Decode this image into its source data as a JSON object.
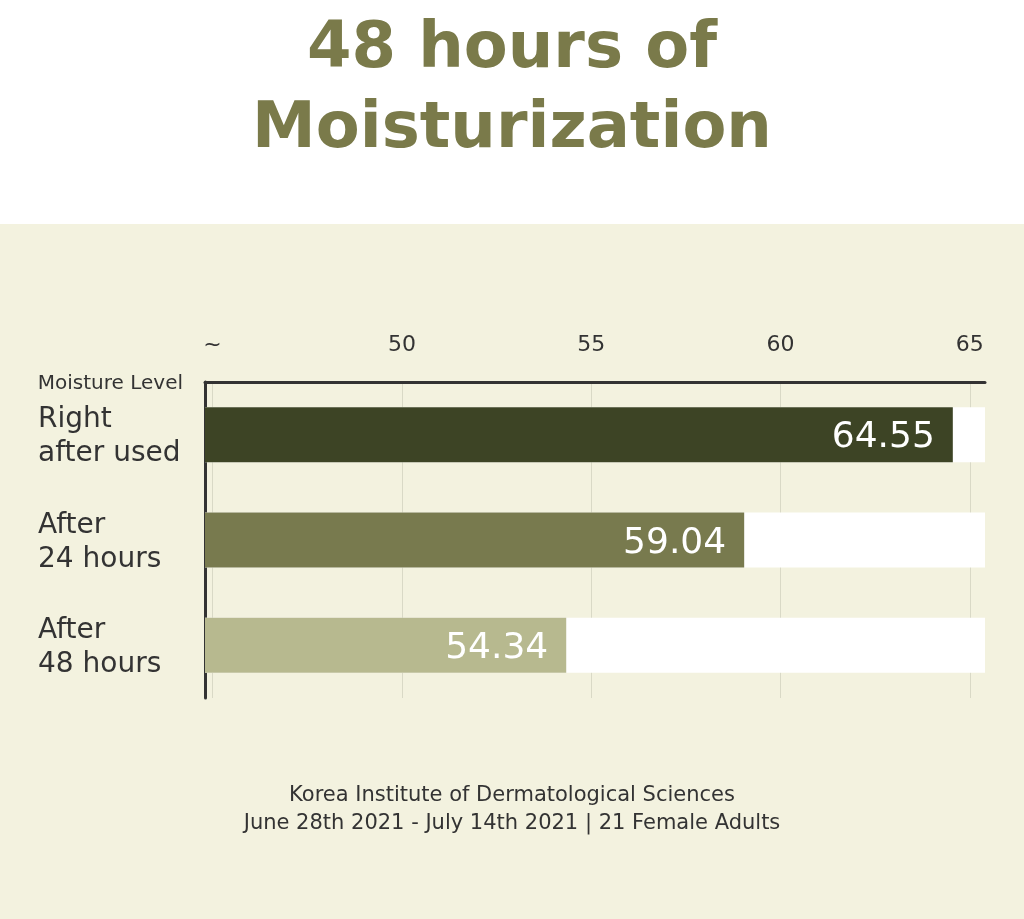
{
  "chart_data": {
    "type": "bar",
    "orientation": "horizontal",
    "title": "48 hours of\nMoisturization",
    "xlabel": "Moisture Level",
    "categories": [
      "Right\nafter used",
      "After\n24 hours",
      "After\n48 hours"
    ],
    "values": [
      64.55,
      59.04,
      54.34
    ],
    "colors": [
      "#3d4425",
      "#787a4e",
      "#b7b98f"
    ],
    "xlim": [
      44.8,
      65.4
    ],
    "xticks": [
      {
        "value": 45,
        "label": "~"
      },
      50,
      55,
      60,
      65
    ],
    "grid": "x",
    "data_labels": true,
    "annotations": [
      "Korea Institute of Dermatological Sciences",
      "June 28th 2021 - July 14th 2021 | 21 Female Adults"
    ]
  }
}
